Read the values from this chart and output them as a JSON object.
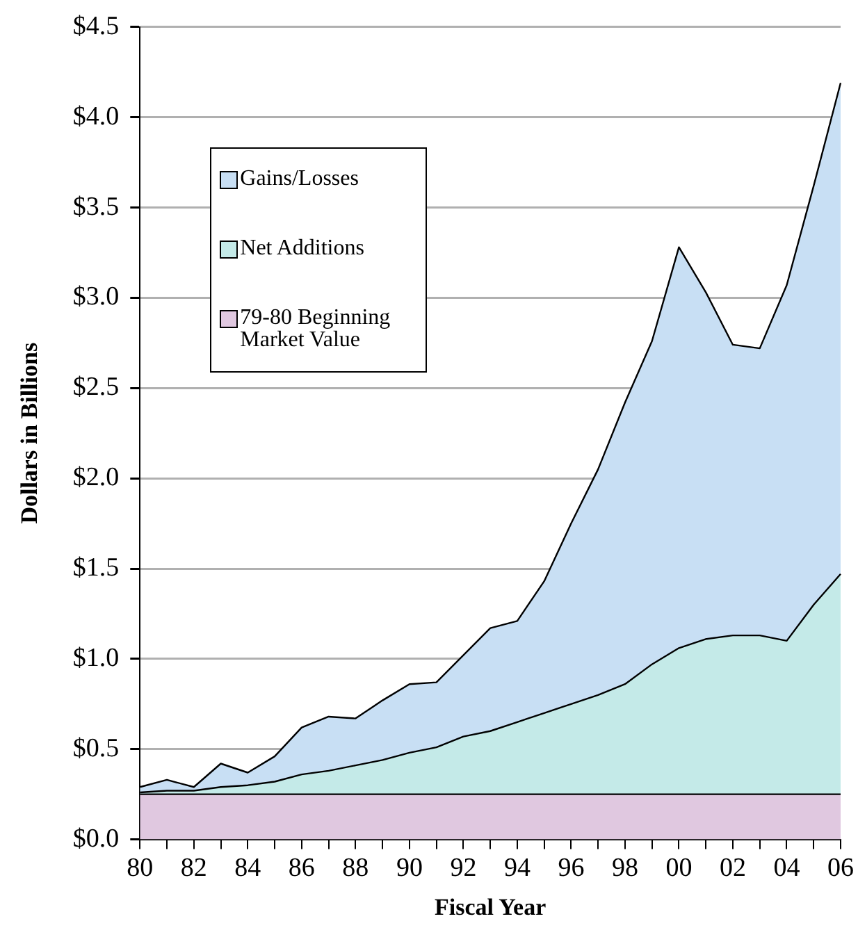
{
  "chart_data": {
    "type": "area",
    "stacked": true,
    "xlabel": "Fiscal Year",
    "ylabel": "Dollars in Billions",
    "categories": [
      "80",
      null,
      "82",
      null,
      "84",
      null,
      "86",
      null,
      "88",
      null,
      "90",
      null,
      "92",
      null,
      "94",
      null,
      "96",
      null,
      "98",
      null,
      "00",
      null,
      "02",
      null,
      "04",
      null,
      "06"
    ],
    "series": [
      {
        "name": "79-80 Beginning Market Value",
        "color": "#e0c8e0",
        "values": [
          0.25,
          0.25,
          0.25,
          0.25,
          0.25,
          0.25,
          0.25,
          0.25,
          0.25,
          0.25,
          0.25,
          0.25,
          0.25,
          0.25,
          0.25,
          0.25,
          0.25,
          0.25,
          0.25,
          0.25,
          0.25,
          0.25,
          0.25,
          0.25,
          0.25,
          0.25,
          0.25
        ]
      },
      {
        "name": "Net Additions",
        "color": "#c4eae8",
        "values": [
          0.01,
          0.02,
          0.02,
          0.04,
          0.05,
          0.07,
          0.11,
          0.13,
          0.16,
          0.19,
          0.23,
          0.26,
          0.32,
          0.35,
          0.4,
          0.45,
          0.5,
          0.55,
          0.61,
          0.72,
          0.81,
          0.86,
          0.88,
          0.88,
          0.85,
          1.05,
          1.22
        ]
      },
      {
        "name": "Gains/Losses",
        "color": "#c8dff4",
        "values": [
          0.03,
          0.06,
          0.02,
          0.13,
          0.07,
          0.14,
          0.26,
          0.3,
          0.26,
          0.33,
          0.38,
          0.36,
          0.45,
          0.57,
          0.56,
          0.73,
          1.0,
          1.25,
          1.56,
          1.79,
          2.22,
          1.92,
          1.61,
          1.59,
          1.97,
          2.32,
          2.72
        ]
      }
    ],
    "ylim": [
      0,
      4.5
    ],
    "yticks": [
      {
        "value": 0,
        "label": "$0.0"
      },
      {
        "value": 0.5,
        "label": "$0.5"
      },
      {
        "value": 1,
        "label": "$1.0"
      },
      {
        "value": 1.5,
        "label": "$1.5"
      },
      {
        "value": 2,
        "label": "$2.0"
      },
      {
        "value": 2.5,
        "label": "$2.5"
      },
      {
        "value": 3,
        "label": "$3.0"
      },
      {
        "value": 3.5,
        "label": "$3.5"
      },
      {
        "value": 4,
        "label": "$4.0"
      },
      {
        "value": 4.5,
        "label": "$4.5"
      }
    ],
    "grid": "y",
    "legend": "top left"
  }
}
